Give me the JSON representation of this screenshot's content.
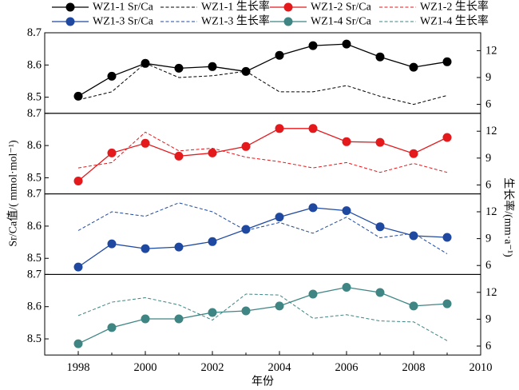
{
  "chart_data": {
    "type": "line",
    "legend_position": "top",
    "grid": false,
    "xlabel": "年份",
    "ylabel": "Sr/Ca值/( mmol·mol⁻¹)",
    "ylabel_right": "生长率/(mm·a⁻¹)",
    "xlim": [
      1997,
      2010
    ],
    "xticks": [
      1998,
      2000,
      2002,
      2004,
      2006,
      2008,
      2010
    ],
    "x": [
      1998,
      1999,
      2000,
      2001,
      2002,
      2003,
      2004,
      2005,
      2006,
      2007,
      2008,
      2009
    ],
    "panels": [
      {
        "ylim_left": [
          8.45,
          8.7
        ],
        "yticks_left": [
          8.5,
          8.6,
          8.7
        ],
        "ylim_right": [
          5,
          14
        ],
        "yticks_right": [
          6,
          9,
          12
        ],
        "series": [
          {
            "name": "WZ1-1 Sr/Ca",
            "secondary_axis": false,
            "markers": true,
            "dashed": false,
            "color": "#000000",
            "values": [
              8.503,
              8.565,
              8.605,
              8.59,
              8.595,
              8.58,
              8.63,
              8.66,
              8.665,
              8.625,
              8.593,
              8.61
            ]
          },
          {
            "name": "WZ1-1 生长率",
            "secondary_axis": true,
            "markers": false,
            "dashed": true,
            "color": "#000000",
            "values": [
              6.5,
              7.4,
              10.6,
              9.0,
              9.2,
              9.7,
              7.4,
              7.4,
              8.1,
              6.9,
              6.0,
              7.0
            ]
          }
        ]
      },
      {
        "ylim_left": [
          8.45,
          8.7
        ],
        "yticks_left": [
          8.5,
          8.6,
          8.7
        ],
        "ylim_right": [
          5,
          14
        ],
        "yticks_right": [
          6,
          9,
          12
        ],
        "series": [
          {
            "name": "WZ1-2 Sr/Ca",
            "secondary_axis": false,
            "markers": true,
            "dashed": false,
            "color": "#e3191c",
            "values": [
              8.49,
              8.577,
              8.607,
              8.567,
              8.577,
              8.597,
              8.653,
              8.653,
              8.612,
              8.61,
              8.575,
              8.625
            ]
          },
          {
            "name": "WZ1-2 生长率",
            "secondary_axis": true,
            "markers": false,
            "dashed": true,
            "color": "#e3191c",
            "values": [
              7.9,
              8.5,
              11.9,
              9.8,
              10.1,
              9.1,
              8.6,
              7.9,
              8.5,
              7.4,
              8.4,
              7.4
            ]
          }
        ]
      },
      {
        "ylim_left": [
          8.45,
          8.7
        ],
        "yticks_left": [
          8.5,
          8.6,
          8.7
        ],
        "ylim_right": [
          5,
          14
        ],
        "yticks_right": [
          6,
          9,
          12
        ],
        "series": [
          {
            "name": "WZ1-3 Sr/Ca",
            "secondary_axis": false,
            "markers": true,
            "dashed": false,
            "color": "#1f49a1",
            "values": [
              8.473,
              8.545,
              8.53,
              8.535,
              8.552,
              8.59,
              8.628,
              8.657,
              8.648,
              8.598,
              8.57,
              8.565
            ]
          },
          {
            "name": "WZ1-3 生长率",
            "secondary_axis": true,
            "markers": false,
            "dashed": true,
            "color": "#1f49a1",
            "values": [
              9.9,
              12.0,
              11.5,
              13.0,
              12.0,
              9.9,
              10.8,
              9.6,
              11.4,
              9.1,
              9.6,
              7.3
            ]
          }
        ]
      },
      {
        "ylim_left": [
          8.45,
          8.7
        ],
        "yticks_left": [
          8.5,
          8.6,
          8.7
        ],
        "ylim_right": [
          5,
          14
        ],
        "yticks_right": [
          6,
          9,
          12
        ],
        "series": [
          {
            "name": "WZ1-4 Sr/Ca",
            "secondary_axis": false,
            "markers": true,
            "dashed": false,
            "color": "#3e8583",
            "values": [
              8.485,
              8.535,
              8.562,
              8.562,
              8.582,
              8.587,
              8.602,
              8.639,
              8.66,
              8.644,
              8.602,
              8.609
            ]
          },
          {
            "name": "WZ1-4 生长率",
            "secondary_axis": true,
            "markers": false,
            "dashed": true,
            "color": "#3e8583",
            "values": [
              9.4,
              10.9,
              11.4,
              10.6,
              8.9,
              11.8,
              11.7,
              9.1,
              9.5,
              8.8,
              8.7,
              6.6
            ]
          }
        ]
      }
    ]
  }
}
